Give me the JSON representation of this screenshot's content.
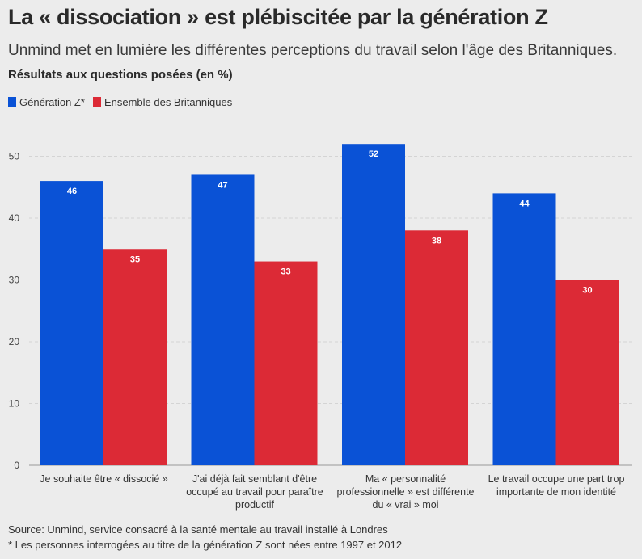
{
  "title": "La « dissociation » est plébiscitée par la génération Z",
  "subtitle": "Unmind met en lumière les différentes perceptions du travail selon l'âge des Britanniques.",
  "footer": {
    "source": "Source: Unmind, service consacré à la santé mentale au travail installé à Londres",
    "note": "* Les personnes interrogées au titre de la génération Z sont nées entre 1997 et 2012"
  },
  "colors": {
    "gen_z": "#0a52d6",
    "all": "#dc2a36",
    "grid": "#d4d4d4",
    "background": "#ececec"
  },
  "chart_data": {
    "type": "bar",
    "ylabel": "Résultats aux questions posées (en %)",
    "ylim": [
      0,
      55
    ],
    "yticks": [
      0,
      10,
      20,
      30,
      40,
      50
    ],
    "grid": true,
    "legend_position": "top-left",
    "categories": [
      "Je souhaite être « dissocié »",
      "J'ai déjà fait semblant d'être occupé au travail pour paraître productif",
      "Ma « personnalité professionnelle » est différente du « vrai » moi",
      "Le travail occupe une part trop importante de mon identité"
    ],
    "series": [
      {
        "name": "Génération Z*",
        "values": [
          46,
          47,
          52,
          44
        ]
      },
      {
        "name": "Ensemble des Britanniques",
        "values": [
          35,
          33,
          38,
          30
        ]
      }
    ]
  }
}
